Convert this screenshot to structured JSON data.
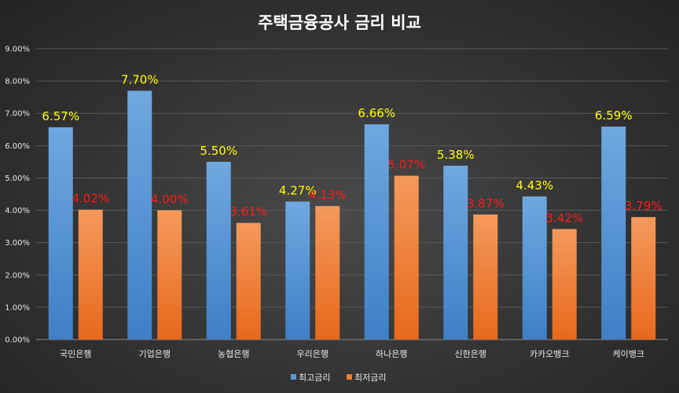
{
  "chart_data": {
    "type": "bar",
    "title": "주택금융공사 금리 비교",
    "categories": [
      "국민은행",
      "기업은행",
      "농협은행",
      "우리은행",
      "하나은행",
      "신한은행",
      "카카오뱅크",
      "케이뱅크"
    ],
    "series": [
      {
        "name": "최고금리",
        "values": [
          6.57,
          7.7,
          5.5,
          4.27,
          6.66,
          5.38,
          4.43,
          6.59
        ],
        "labels": [
          "6.57%",
          "7.70%",
          "5.50%",
          "4.27%",
          "6.66%",
          "5.38%",
          "4.43%",
          "6.59%"
        ],
        "color": "#5b9bd5",
        "label_color": "#ffff00"
      },
      {
        "name": "최저금리",
        "values": [
          4.02,
          4.0,
          3.61,
          4.13,
          5.07,
          3.87,
          3.42,
          3.79
        ],
        "labels": [
          "4.02%",
          "4.00%",
          "3.61%",
          "4.13%",
          "5.07%",
          "3.87%",
          "3.42%",
          "3.79%"
        ],
        "color": "#ed7d31",
        "label_color": "#ff0000"
      }
    ],
    "yticks": [
      "0.00%",
      "1.00%",
      "2.00%",
      "3.00%",
      "4.00%",
      "5.00%",
      "6.00%",
      "7.00%",
      "8.00%",
      "9.00%"
    ],
    "ylim": [
      0,
      9
    ],
    "grid": true,
    "legend_position": "bottom"
  }
}
